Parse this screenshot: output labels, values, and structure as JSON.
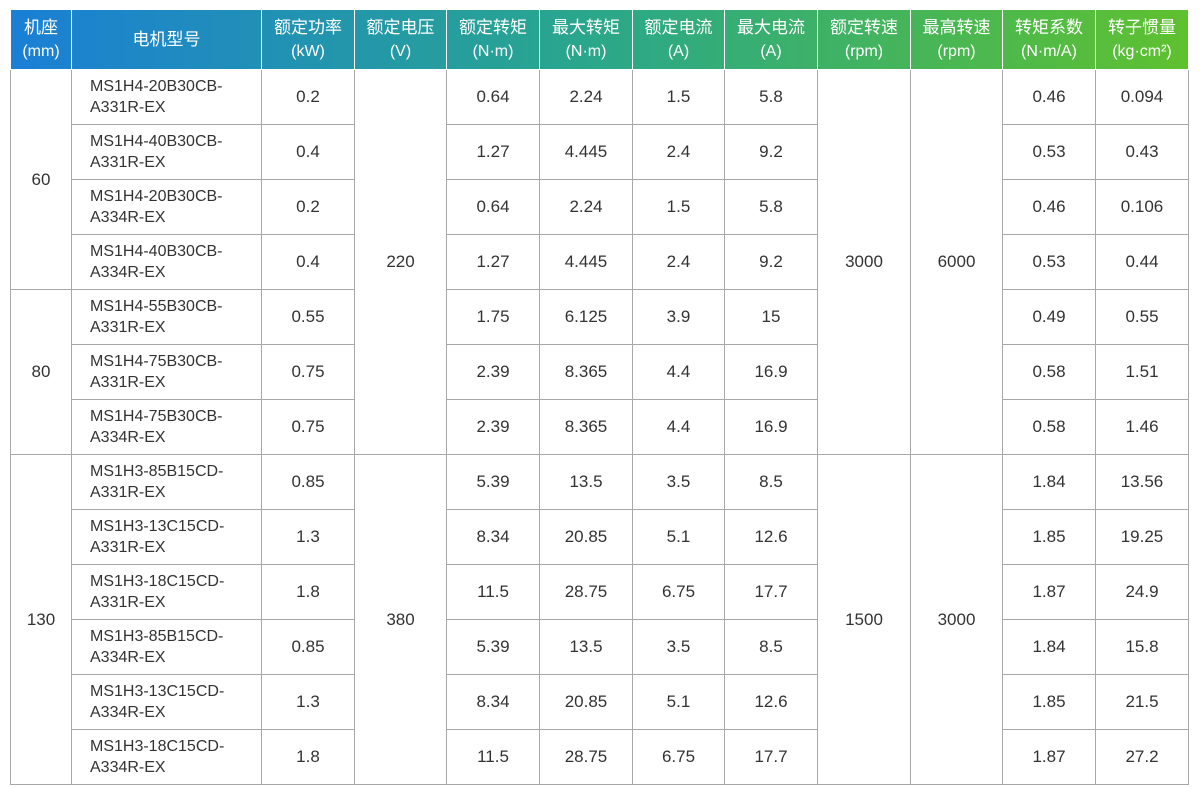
{
  "table": {
    "header_gradient": [
      "#1a7fd6",
      "#2aa88a",
      "#5fc12e"
    ],
    "headers": [
      {
        "label": "机座",
        "unit": "(mm)"
      },
      {
        "label": "电机型号",
        "unit": ""
      },
      {
        "label": "额定功率",
        "unit": "(kW)"
      },
      {
        "label": "额定电压",
        "unit": "(V)"
      },
      {
        "label": "额定转矩",
        "unit": "(N·m)"
      },
      {
        "label": "最大转矩",
        "unit": "(N·m)"
      },
      {
        "label": "额定电流",
        "unit": "(A)"
      },
      {
        "label": "最大电流",
        "unit": "(A)"
      },
      {
        "label": "额定转速",
        "unit": "(rpm)"
      },
      {
        "label": "最高转速",
        "unit": "(rpm)"
      },
      {
        "label": "转矩系数",
        "unit": "(N·m/A)"
      },
      {
        "label": "转子惯量",
        "unit": "(kg·cm²)"
      }
    ],
    "groups": {
      "frame": [
        "60",
        "80",
        "130"
      ],
      "voltage": [
        "220",
        "380"
      ],
      "rated_speed": [
        "3000",
        "1500"
      ],
      "max_speed": [
        "6000",
        "3000"
      ]
    },
    "rows": [
      {
        "model": [
          "MS1H4-20B30CB-",
          "A331R-EX"
        ],
        "power": "0.2",
        "rated_torque": "0.64",
        "max_torque": "2.24",
        "rated_current": "1.5",
        "max_current": "5.8",
        "torque_coef": "0.46",
        "inertia": "0.094"
      },
      {
        "model": [
          "MS1H4-40B30CB-",
          "A331R-EX"
        ],
        "power": "0.4",
        "rated_torque": "1.27",
        "max_torque": "4.445",
        "rated_current": "2.4",
        "max_current": "9.2",
        "torque_coef": "0.53",
        "inertia": "0.43"
      },
      {
        "model": [
          "MS1H4-20B30CB-",
          "A334R-EX"
        ],
        "power": "0.2",
        "rated_torque": "0.64",
        "max_torque": "2.24",
        "rated_current": "1.5",
        "max_current": "5.8",
        "torque_coef": "0.46",
        "inertia": "0.106"
      },
      {
        "model": [
          "MS1H4-40B30CB-",
          "A334R-EX"
        ],
        "power": "0.4",
        "rated_torque": "1.27",
        "max_torque": "4.445",
        "rated_current": "2.4",
        "max_current": "9.2",
        "torque_coef": "0.53",
        "inertia": "0.44"
      },
      {
        "model": [
          "MS1H4-55B30CB-",
          "A331R-EX"
        ],
        "power": "0.55",
        "rated_torque": "1.75",
        "max_torque": "6.125",
        "rated_current": "3.9",
        "max_current": "15",
        "torque_coef": "0.49",
        "inertia": "0.55"
      },
      {
        "model": [
          "MS1H4-75B30CB-",
          "A331R-EX"
        ],
        "power": "0.75",
        "rated_torque": "2.39",
        "max_torque": "8.365",
        "rated_current": "4.4",
        "max_current": "16.9",
        "torque_coef": "0.58",
        "inertia": "1.51"
      },
      {
        "model": [
          "MS1H4-75B30CB-",
          "A334R-EX"
        ],
        "power": "0.75",
        "rated_torque": "2.39",
        "max_torque": "8.365",
        "rated_current": "4.4",
        "max_current": "16.9",
        "torque_coef": "0.58",
        "inertia": "1.46"
      },
      {
        "model": [
          "MS1H3-85B15CD-",
          "A331R-EX"
        ],
        "power": "0.85",
        "rated_torque": "5.39",
        "max_torque": "13.5",
        "rated_current": "3.5",
        "max_current": "8.5",
        "torque_coef": "1.84",
        "inertia": "13.56"
      },
      {
        "model": [
          "MS1H3-13C15CD-",
          "A331R-EX"
        ],
        "power": "1.3",
        "rated_torque": "8.34",
        "max_torque": "20.85",
        "rated_current": "5.1",
        "max_current": "12.6",
        "torque_coef": "1.85",
        "inertia": "19.25"
      },
      {
        "model": [
          "MS1H3-18C15CD-",
          "A331R-EX"
        ],
        "power": "1.8",
        "rated_torque": "11.5",
        "max_torque": "28.75",
        "rated_current": "6.75",
        "max_current": "17.7",
        "torque_coef": "1.87",
        "inertia": "24.9"
      },
      {
        "model": [
          "MS1H3-85B15CD-",
          "A334R-EX"
        ],
        "power": "0.85",
        "rated_torque": "5.39",
        "max_torque": "13.5",
        "rated_current": "3.5",
        "max_current": "8.5",
        "torque_coef": "1.84",
        "inertia": "15.8"
      },
      {
        "model": [
          "MS1H3-13C15CD-",
          "A334R-EX"
        ],
        "power": "1.3",
        "rated_torque": "8.34",
        "max_torque": "20.85",
        "rated_current": "5.1",
        "max_current": "12.6",
        "torque_coef": "1.85",
        "inertia": "21.5"
      },
      {
        "model": [
          "MS1H3-18C15CD-",
          "A334R-EX"
        ],
        "power": "1.8",
        "rated_torque": "11.5",
        "max_torque": "28.75",
        "rated_current": "6.75",
        "max_current": "17.7",
        "torque_coef": "1.87",
        "inertia": "27.2"
      }
    ]
  }
}
